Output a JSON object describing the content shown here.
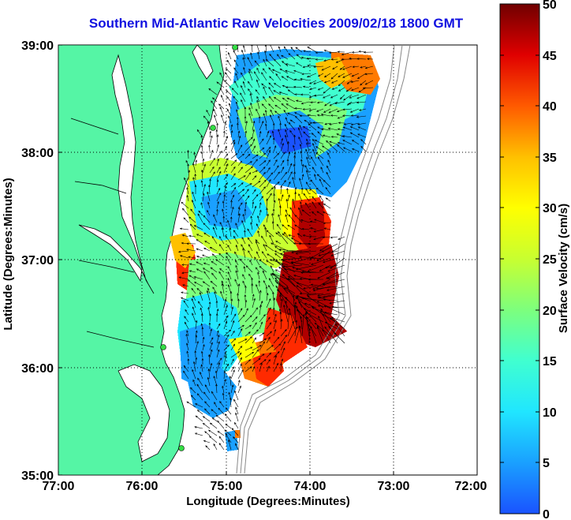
{
  "title": "Southern Mid-Atlantic Raw Velocities 2009/02/18 1800 GMT",
  "axes": {
    "xlabel": "Longitude (Degrees:Minutes)",
    "ylabel": "Latitude (Degrees:Minutes)",
    "x_ticks": [
      "77:00",
      "76:00",
      "75:00",
      "74:00",
      "73:00",
      "72:00"
    ],
    "y_ticks": [
      "39:00",
      "38:00",
      "37:00",
      "36:00",
      "35:00"
    ],
    "grid": "dotted"
  },
  "colorbar": {
    "label": "Surface Velocity (cm/s)",
    "ticks": [
      "0",
      "5",
      "10",
      "15",
      "20",
      "25",
      "30",
      "35",
      "40",
      "45",
      "50"
    ],
    "range": [
      0,
      50
    ],
    "colors": [
      "#1a53ff",
      "#1aa0ff",
      "#20e6ff",
      "#40ffd0",
      "#7dff7d",
      "#c8ff30",
      "#ffff00",
      "#ffc000",
      "#ff7a00",
      "#ff2a00",
      "#b00000",
      "#700000"
    ]
  },
  "colors": {
    "land": "#55f5a5",
    "water": "#ffffff",
    "title": "#1010e0",
    "station": "#33dd44"
  },
  "chart_data": {
    "type": "map",
    "title": "Southern Mid-Atlantic Raw Velocities 2009/02/18 1800 GMT",
    "xlabel": "Longitude (Degrees:Minutes)",
    "ylabel": "Latitude (Degrees:Minutes)",
    "xlim": [
      "77:00",
      "72:00"
    ],
    "ylim": [
      "35:00",
      "39:00"
    ],
    "colorbar_range_cm_s": [
      0,
      50
    ]
  }
}
